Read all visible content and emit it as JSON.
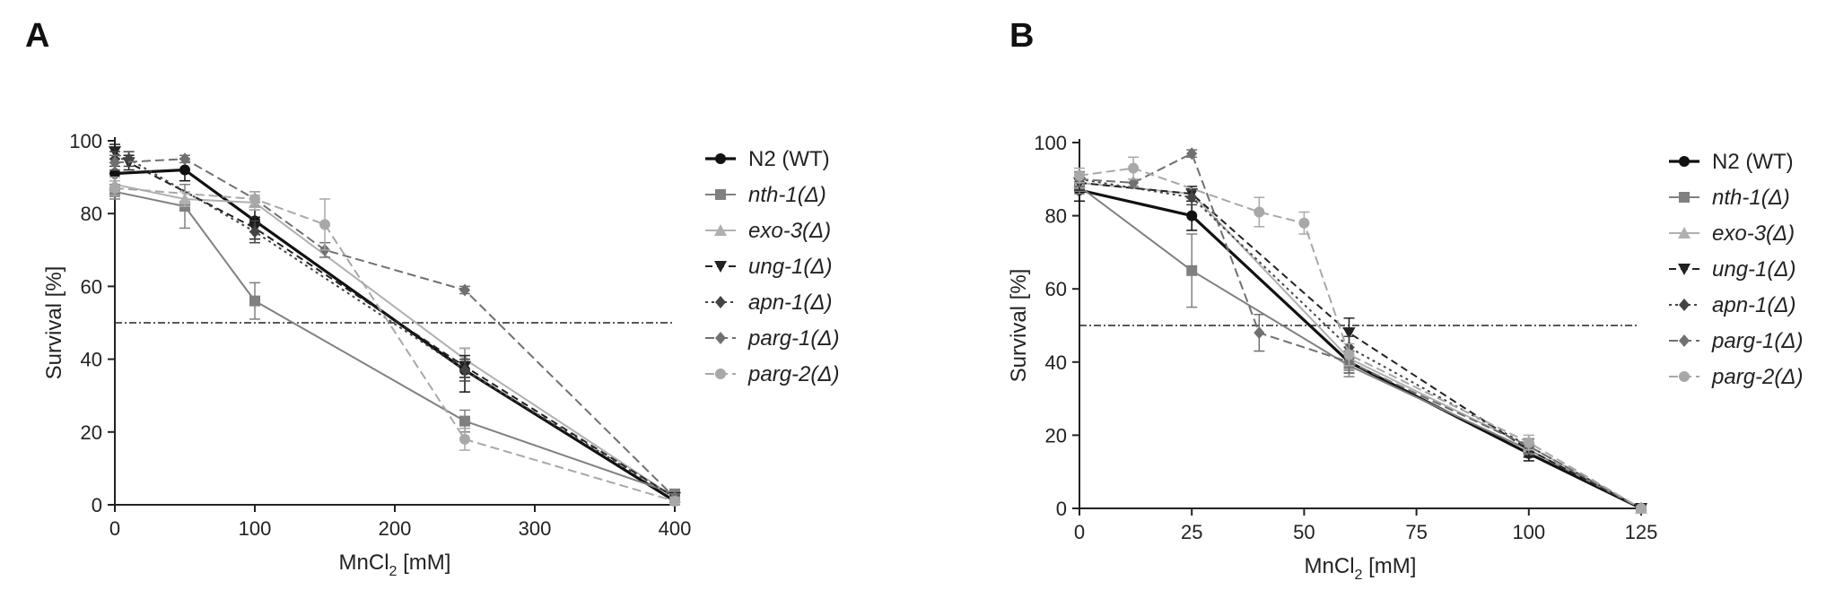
{
  "chart_data": [
    {
      "panel": "A",
      "type": "line",
      "xlabel_main": "MnCl",
      "xlabel_sub": "2",
      "xlabel_unit": " [mM]",
      "ylabel": "Survival [%]",
      "xlim": [
        0,
        400
      ],
      "ylim": [
        0,
        100
      ],
      "xticks": [
        0,
        100,
        200,
        300,
        400
      ],
      "yticks": [
        0,
        20,
        40,
        60,
        80,
        100
      ],
      "reference_line_y": 50,
      "series": [
        {
          "name": "N2 (WT)",
          "italic": false,
          "color": "#111111",
          "dash": "",
          "width": 3.2,
          "marker": "circle",
          "x": [
            0,
            50,
            100,
            250,
            400
          ],
          "y": [
            91,
            92,
            78,
            37,
            1
          ],
          "err": [
            3,
            3,
            3,
            6,
            1
          ]
        },
        {
          "name": "nth-1(Δ)",
          "italic": true,
          "color": "#808080",
          "dash": "",
          "width": 2,
          "marker": "square",
          "x": [
            0,
            50,
            100,
            250,
            400
          ],
          "y": [
            86,
            82,
            56,
            23,
            3
          ],
          "err": [
            2,
            6,
            5,
            3,
            1
          ]
        },
        {
          "name": "exo-3(Δ)",
          "italic": true,
          "color": "#b0b0b0",
          "dash": "",
          "width": 2,
          "marker": "triangle-up",
          "x": [
            0,
            50,
            100,
            250,
            400
          ],
          "y": [
            88,
            84,
            83,
            40,
            2
          ],
          "err": [
            2,
            2,
            2,
            3,
            1
          ]
        },
        {
          "name": "ung-1(Δ)",
          "italic": true,
          "color": "#222222",
          "dash": "8,5",
          "width": 2,
          "marker": "triangle-down",
          "x": [
            0,
            10,
            100,
            250,
            400
          ],
          "y": [
            97,
            94,
            76,
            38,
            2
          ],
          "err": [
            2,
            2,
            3,
            3,
            1
          ]
        },
        {
          "name": "apn-1(Δ)",
          "italic": true,
          "color": "#444444",
          "dash": "3,4",
          "width": 2,
          "marker": "diamond",
          "x": [
            0,
            10,
            100,
            250,
            400
          ],
          "y": [
            95,
            95,
            75,
            37,
            2
          ],
          "err": [
            2,
            2,
            3,
            3,
            1
          ]
        },
        {
          "name": "parg-1(Δ)",
          "italic": true,
          "color": "#707070",
          "dash": "10,5",
          "width": 2,
          "marker": "diamond",
          "x": [
            0,
            50,
            100,
            150,
            250,
            400
          ],
          "y": [
            94,
            95,
            84,
            70,
            59,
            2
          ],
          "err": [
            2,
            1,
            2,
            2,
            1,
            1
          ]
        },
        {
          "name": "parg-2(Δ)",
          "italic": true,
          "color": "#a8a8a8",
          "dash": "10,5",
          "width": 2,
          "marker": "circle",
          "x": [
            0,
            100,
            150,
            250,
            400
          ],
          "y": [
            87,
            84,
            77,
            18,
            1
          ],
          "err": [
            2,
            2,
            7,
            3,
            1
          ]
        }
      ]
    },
    {
      "panel": "B",
      "type": "line",
      "xlabel_main": "MnCl",
      "xlabel_sub": "2",
      "xlabel_unit": " [mM]",
      "ylabel": "Survival [%]",
      "xlim": [
        0,
        125
      ],
      "ylim": [
        0,
        100
      ],
      "xticks": [
        0,
        25,
        50,
        75,
        100,
        125
      ],
      "yticks": [
        0,
        20,
        40,
        60,
        80,
        100
      ],
      "reference_line_y": 50,
      "series": [
        {
          "name": "N2 (WT)",
          "italic": false,
          "color": "#111111",
          "dash": "",
          "width": 3.2,
          "marker": "circle",
          "x": [
            0,
            25,
            60,
            100,
            125
          ],
          "y": [
            87,
            80,
            40,
            15,
            0
          ],
          "err": [
            3,
            4,
            3,
            2,
            0
          ]
        },
        {
          "name": "nth-1(Δ)",
          "italic": true,
          "color": "#808080",
          "dash": "",
          "width": 2,
          "marker": "square",
          "x": [
            0,
            25,
            60,
            100,
            125
          ],
          "y": [
            88,
            65,
            39,
            16,
            0
          ],
          "err": [
            2,
            10,
            3,
            2,
            0
          ]
        },
        {
          "name": "exo-3(Δ)",
          "italic": true,
          "color": "#b0b0b0",
          "dash": "",
          "width": 2,
          "marker": "triangle-up",
          "x": [
            0,
            25,
            60,
            100,
            125
          ],
          "y": [
            89,
            86,
            41,
            17,
            0
          ],
          "err": [
            2,
            2,
            3,
            2,
            0
          ]
        },
        {
          "name": "ung-1(Δ)",
          "italic": true,
          "color": "#222222",
          "dash": "8,5",
          "width": 2,
          "marker": "triangle-down",
          "x": [
            0,
            25,
            60,
            100,
            125
          ],
          "y": [
            89,
            86,
            48,
            16,
            0
          ],
          "err": [
            2,
            2,
            4,
            2,
            0
          ]
        },
        {
          "name": "apn-1(Δ)",
          "italic": true,
          "color": "#444444",
          "dash": "3,4",
          "width": 2,
          "marker": "diamond",
          "x": [
            0,
            25,
            60,
            100,
            125
          ],
          "y": [
            90,
            85,
            44,
            17,
            0
          ],
          "err": [
            2,
            2,
            3,
            2,
            0
          ]
        },
        {
          "name": "parg-1(Δ)",
          "italic": true,
          "color": "#707070",
          "dash": "10,5",
          "width": 2,
          "marker": "diamond",
          "x": [
            0,
            12,
            25,
            40,
            60,
            100,
            125
          ],
          "y": [
            90,
            89,
            97,
            48,
            40,
            17,
            0
          ],
          "err": [
            2,
            1,
            1,
            5,
            3,
            2,
            0
          ]
        },
        {
          "name": "parg-2(Δ)",
          "italic": true,
          "color": "#a8a8a8",
          "dash": "10,5",
          "width": 2,
          "marker": "circle",
          "x": [
            0,
            12,
            40,
            50,
            60,
            100,
            125
          ],
          "y": [
            91,
            93,
            81,
            78,
            42,
            18,
            0
          ],
          "err": [
            2,
            3,
            4,
            3,
            3,
            2,
            0
          ]
        }
      ]
    }
  ]
}
